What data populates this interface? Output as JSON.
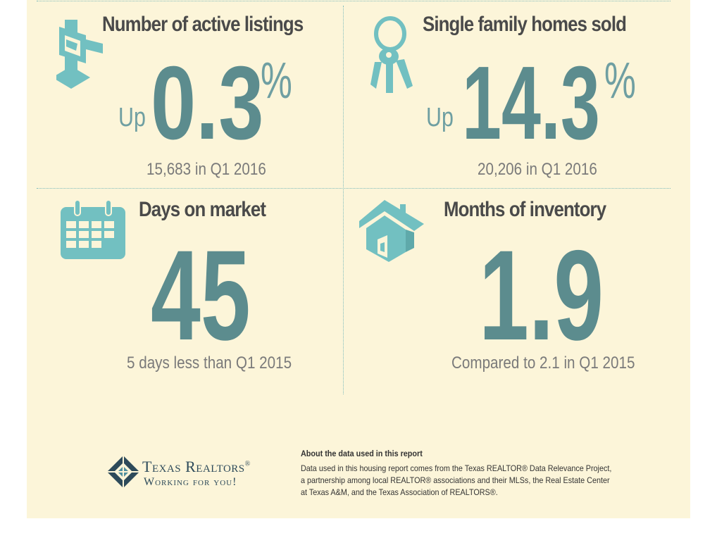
{
  "stats": {
    "listings": {
      "title": "Number of active listings",
      "direction": "Up",
      "value": "0.3",
      "unit": "%",
      "detail": "15,683 in Q1 2016",
      "icon": "for-sale-sign-icon"
    },
    "homes_sold": {
      "title": "Single family homes sold",
      "direction": "Up",
      "value": "14.3",
      "unit": "%",
      "detail": "20,206 in Q1 2016",
      "icon": "keys-icon"
    },
    "days_on_market": {
      "title": "Days on market",
      "value": "45",
      "detail": "5 days less than Q1 2015",
      "icon": "calendar-icon"
    },
    "months_inventory": {
      "title": "Months of inventory",
      "value": "1.9",
      "detail": "Compared to 2.1 in Q1 2015",
      "icon": "house-icon"
    }
  },
  "footer": {
    "logo_name": "Texas Realtors",
    "logo_reg": "®",
    "logo_tagline": "Working for you!",
    "about_title": "About the data used in this report",
    "about_lines": [
      "Data used in this housing report comes from the Texas REALTOR® Data Relevance Project,",
      "a partnership among local REALTOR® associations and their MLSs, the Real Estate Center",
      "at Texas A&M, and the Texas Association of REALTORS®."
    ]
  },
  "colors": {
    "background": "#fcf5d9",
    "accent": "#5c8c8e",
    "icon": "#72c0c1",
    "title": "#4a4a4a",
    "logo": "#2d4a5a"
  }
}
